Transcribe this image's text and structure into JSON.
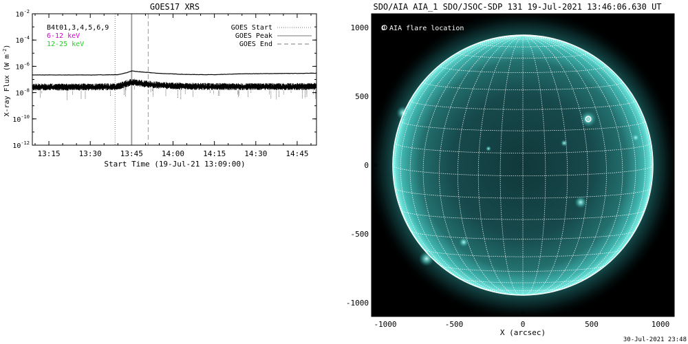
{
  "chart_data": [
    {
      "type": "line",
      "title": "GOES17 XRS",
      "xlabel": "Start Time (19-Jul-21 13:09:00)",
      "ylabel": "X-ray Flux (W m",
      "ylabel_sup": "-2",
      "ylabel_close": ")",
      "y_scale": "log",
      "ylim": [
        1e-12,
        0.01
      ],
      "y_ticks": [
        {
          "base": "10",
          "exp": "-2"
        },
        {
          "base": "10",
          "exp": "-4"
        },
        {
          "base": "10",
          "exp": "-6"
        },
        {
          "base": "10",
          "exp": "-8"
        },
        {
          "base": "10",
          "exp": "-10"
        },
        {
          "base": "10",
          "exp": "-12"
        }
      ],
      "x_range": [
        "13:09",
        "14:52"
      ],
      "x_ticks": [
        "13:15",
        "13:30",
        "13:45",
        "14:00",
        "14:15",
        "14:30",
        "14:45"
      ],
      "legend_left": [
        {
          "label": "B4t01,3,4,5,6,9",
          "color": "#000000"
        },
        {
          "label": "6-12 keV",
          "color": "#d000d0"
        },
        {
          "label": "12-25 keV",
          "color": "#20d020"
        }
      ],
      "legend_right": [
        {
          "label": "GOES Start",
          "style": "dotted"
        },
        {
          "label": "GOES Peak",
          "style": "solid"
        },
        {
          "label": "GOES End",
          "style": "dashed"
        }
      ],
      "event_lines": {
        "start": "13:39",
        "peak": "13:45",
        "end": "13:51"
      },
      "series": [
        {
          "x": [
            "13:09",
            "13:30",
            "13:40",
            "13:43",
            "13:45",
            "13:48",
            "13:55",
            "14:05",
            "14:15",
            "14:25",
            "14:35",
            "14:45",
            "14:52"
          ],
          "y": [
            2.2e-07,
            2.2e-07,
            2.3e-07,
            3.2e-07,
            4.4e-07,
            3.8e-07,
            2.9e-07,
            2.4e-07,
            2.3e-07,
            2.7e-07,
            2.8e-07,
            2.9e-07,
            3e-07
          ]
        },
        {
          "x": [
            "13:09",
            "13:30",
            "13:40",
            "13:43",
            "13:45",
            "13:48",
            "13:55",
            "14:05",
            "14:15",
            "14:25",
            "14:35",
            "14:45",
            "14:52"
          ],
          "y": [
            2.6e-08,
            2.6e-08,
            2.8e-08,
            4.5e-08,
            6.5e-08,
            5e-08,
            3.5e-08,
            2.9e-08,
            2.8e-08,
            2.8e-08,
            2.8e-08,
            2.8e-08,
            2.9e-08
          ]
        }
      ]
    },
    {
      "type": "scatter",
      "title": "SDO/AIA AIA_1 SDO/JSOC-SDP 131 19-Jul-2021 13:46:06.630 UT",
      "xlabel": "X (arcsec)",
      "ylabel": "",
      "xlim": [
        -1100,
        1100
      ],
      "ylim": [
        -1100,
        1100
      ],
      "x_ticks": [
        -1000,
        -500,
        0,
        500,
        1000
      ],
      "y_ticks": [
        -1000,
        -500,
        0,
        500,
        1000
      ],
      "legend": "O AIA flare location",
      "solar_radius_arcsec": 946,
      "grid_spacing_deg": 10,
      "flare_location": {
        "x": 475,
        "y": 335,
        "radius": 95
      },
      "colors": {
        "disk": "#1c5f62",
        "limb": "#5fe8e0",
        "background": "#000000",
        "grid": "#ffffff"
      }
    }
  ],
  "footer": {
    "timestamp": "30-Jul-2021 23:48"
  }
}
